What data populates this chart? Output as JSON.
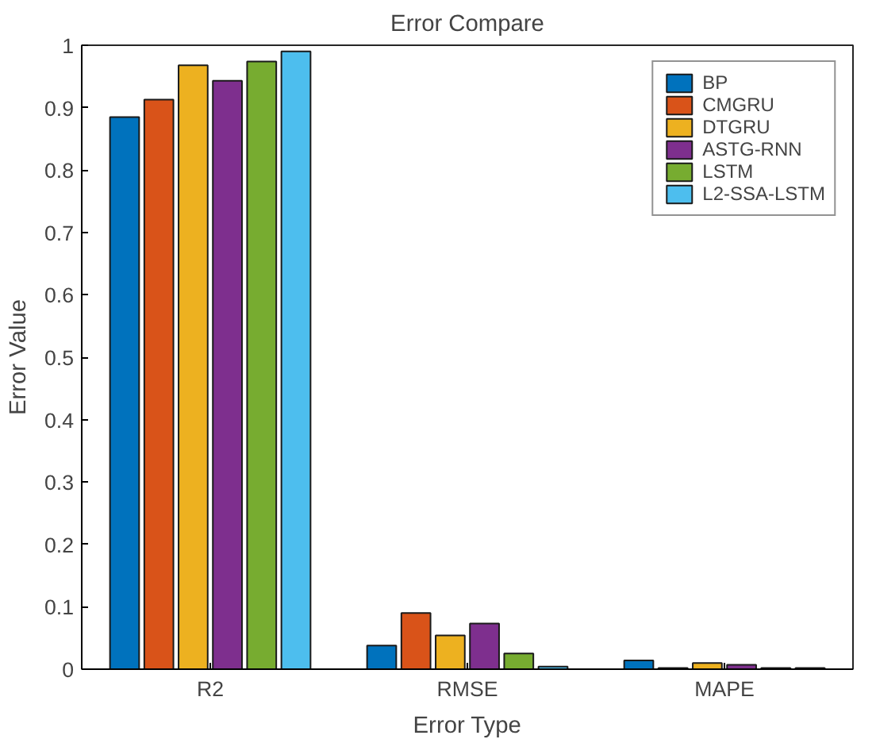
{
  "chart_data": {
    "type": "bar",
    "title": "Error Compare",
    "xlabel": "Error Type",
    "ylabel": "Error Value",
    "categories": [
      "R2",
      "RMSE",
      "MAPE"
    ],
    "series": [
      {
        "name": "BP",
        "color": "#0072bd",
        "values": [
          0.885,
          0.038,
          0.014
        ]
      },
      {
        "name": "CMGRU",
        "color": "#d95319",
        "values": [
          0.913,
          0.09,
          0.002
        ]
      },
      {
        "name": "DTGRU",
        "color": "#edb120",
        "values": [
          0.968,
          0.054,
          0.01
        ]
      },
      {
        "name": "ASTG-RNN",
        "color": "#7e2f8e",
        "values": [
          0.943,
          0.073,
          0.007
        ]
      },
      {
        "name": "LSTM",
        "color": "#77ac30",
        "values": [
          0.974,
          0.025,
          0.002
        ]
      },
      {
        "name": "L2-SSA-LSTM",
        "color": "#4dbeee",
        "values": [
          0.99,
          0.004,
          0.002
        ]
      }
    ],
    "ylim": [
      0,
      1
    ],
    "yticks": [
      0,
      0.1,
      0.2,
      0.3,
      0.4,
      0.5,
      0.6,
      0.7,
      0.8,
      0.9,
      1
    ],
    "grid": false,
    "legend": "top right"
  }
}
